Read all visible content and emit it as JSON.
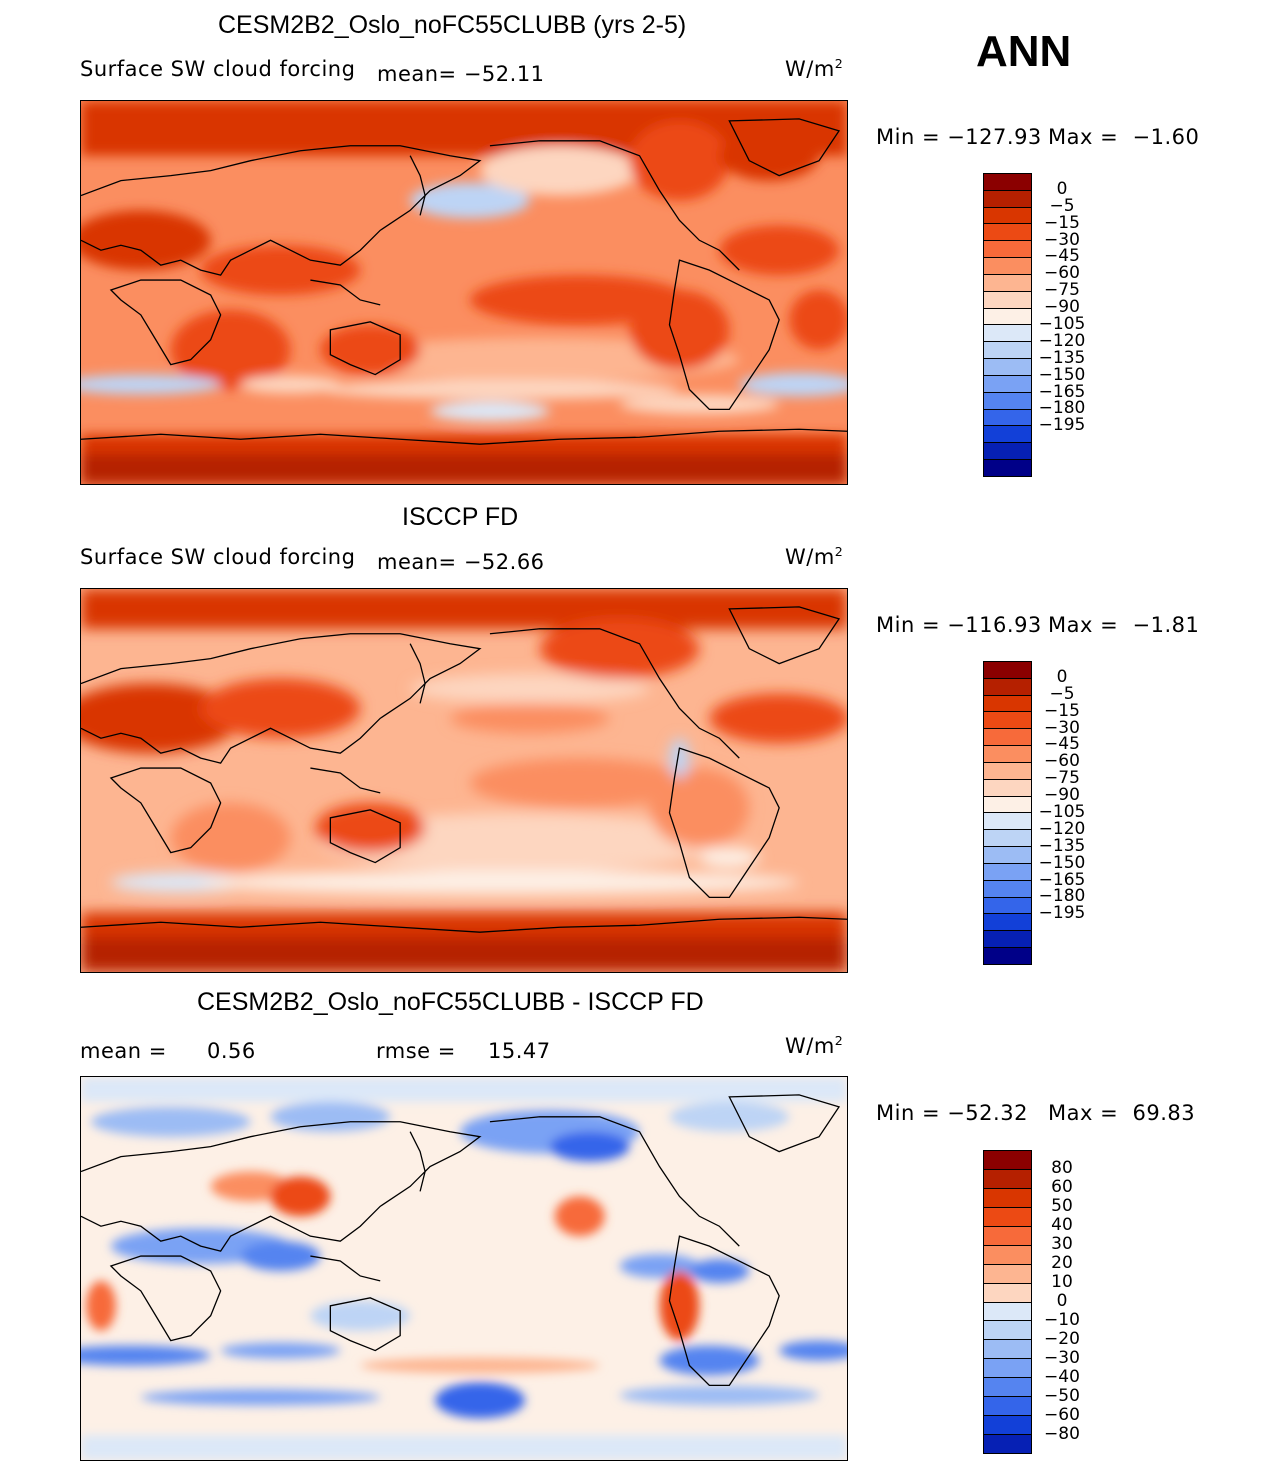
{
  "season": "ANN",
  "units": "W/m",
  "units_exp": "2",
  "panels": [
    {
      "title": "CESM2B2_Oslo_noFC55CLUBB (yrs 2-5)",
      "variable": "Surface SW cloud forcing",
      "mean_text": "mean= −52.11",
      "min_text": "Min = −127.93",
      "max_text": "Max =  −1.60"
    },
    {
      "title": "ISCCP FD",
      "variable": "Surface SW cloud forcing",
      "mean_text": "mean= −52.66",
      "min_text": "Min = −116.93",
      "max_text": "Max =  −1.81"
    },
    {
      "title": "CESM2B2_Oslo_noFC55CLUBB - ISCCP FD",
      "mean_label": "mean =",
      "mean_value": "0.56",
      "rmse_label": "rmse =",
      "rmse_value": "15.47",
      "min_text": "Min = −52.32",
      "max_text": "Max =  69.83"
    }
  ],
  "colorbars": {
    "abs_colors": [
      "#8b0000",
      "#b52000",
      "#d93600",
      "#ec4a14",
      "#f76a3a",
      "#fb8e60",
      "#fdb591",
      "#fdd6c0",
      "#fdf0e6",
      "#dce8f8",
      "#bdd4f5",
      "#9cbcf4",
      "#7aa2f4",
      "#5584f0",
      "#3465ea",
      "#1240d8",
      "#0620b4",
      "#000088"
    ],
    "abs_labels": [
      "0",
      "−5",
      "−15",
      "−30",
      "−45",
      "−60",
      "−75",
      "−90",
      "−105",
      "−120",
      "−135",
      "−150",
      "−165",
      "−180",
      "−195"
    ],
    "diff_colors": [
      "#8b0000",
      "#b52000",
      "#d93600",
      "#ec4a14",
      "#f76a3a",
      "#fb8e60",
      "#fdb591",
      "#fdd6c0",
      "#dce8f8",
      "#bdd4f5",
      "#9cbcf4",
      "#7aa2f4",
      "#5584f0",
      "#3465ea",
      "#1240d8",
      "#0620b4"
    ],
    "diff_labels": [
      "80",
      "60",
      "50",
      "40",
      "30",
      "20",
      "10",
      "0",
      "−10",
      "−20",
      "−30",
      "−40",
      "−50",
      "−60",
      "−80"
    ]
  },
  "chart_data": [
    {
      "type": "heatmap",
      "title": "CESM2B2_Oslo_noFC55CLUBB (yrs 2-5)",
      "variable": "Surface SW cloud forcing",
      "units": "W/m2",
      "mean": -52.11,
      "min": -127.93,
      "max": -1.6,
      "levels": [
        0,
        -5,
        -15,
        -30,
        -45,
        -60,
        -75,
        -90,
        -105,
        -120,
        -135,
        -150,
        -165,
        -180,
        -195
      ],
      "lon_range": [
        0,
        360
      ],
      "lat_range": [
        -90,
        90
      ]
    },
    {
      "type": "heatmap",
      "title": "ISCCP FD",
      "variable": "Surface SW cloud forcing",
      "units": "W/m2",
      "mean": -52.66,
      "min": -116.93,
      "max": -1.81,
      "levels": [
        0,
        -5,
        -15,
        -30,
        -45,
        -60,
        -75,
        -90,
        -105,
        -120,
        -135,
        -150,
        -165,
        -180,
        -195
      ],
      "lon_range": [
        0,
        360
      ],
      "lat_range": [
        -90,
        90
      ]
    },
    {
      "type": "heatmap",
      "title": "CESM2B2_Oslo_noFC55CLUBB - ISCCP FD",
      "units": "W/m2",
      "mean": 0.56,
      "rmse": 15.47,
      "min": -52.32,
      "max": 69.83,
      "levels": [
        80,
        60,
        50,
        40,
        30,
        20,
        10,
        0,
        -10,
        -20,
        -30,
        -40,
        -50,
        -60,
        -80
      ],
      "lon_range": [
        0,
        360
      ],
      "lat_range": [
        -90,
        90
      ]
    }
  ]
}
